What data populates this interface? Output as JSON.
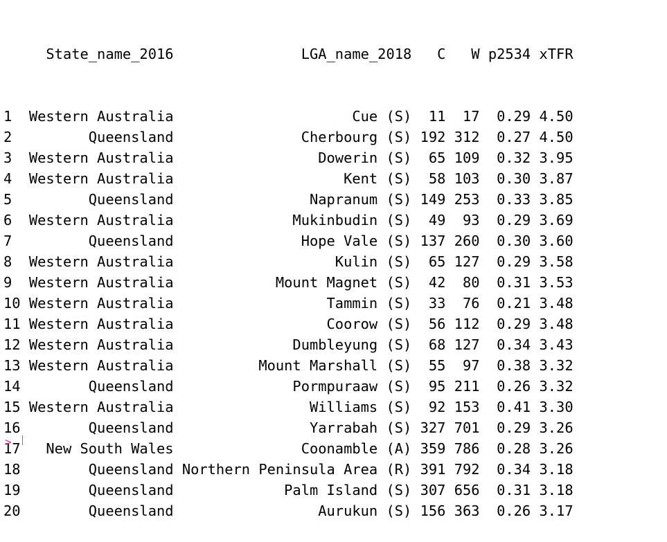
{
  "console": {
    "columns": [
      "State_name_2016",
      "LGA_name_2018",
      "C",
      "W",
      "p2534",
      "xTFR"
    ],
    "rows": [
      {
        "idx": "1",
        "state": "Western Australia",
        "lga": "Cue (S)",
        "C": "11",
        "W": "17",
        "p2534": "0.29",
        "xTFR": "4.50"
      },
      {
        "idx": "2",
        "state": "Queensland",
        "lga": "Cherbourg (S)",
        "C": "192",
        "W": "312",
        "p2534": "0.27",
        "xTFR": "4.50"
      },
      {
        "idx": "3",
        "state": "Western Australia",
        "lga": "Dowerin (S)",
        "C": "65",
        "W": "109",
        "p2534": "0.32",
        "xTFR": "3.95"
      },
      {
        "idx": "4",
        "state": "Western Australia",
        "lga": "Kent (S)",
        "C": "58",
        "W": "103",
        "p2534": "0.30",
        "xTFR": "3.87"
      },
      {
        "idx": "5",
        "state": "Queensland",
        "lga": "Napranum (S)",
        "C": "149",
        "W": "253",
        "p2534": "0.33",
        "xTFR": "3.85"
      },
      {
        "idx": "6",
        "state": "Western Australia",
        "lga": "Mukinbudin (S)",
        "C": "49",
        "W": "93",
        "p2534": "0.29",
        "xTFR": "3.69"
      },
      {
        "idx": "7",
        "state": "Queensland",
        "lga": "Hope Vale (S)",
        "C": "137",
        "W": "260",
        "p2534": "0.30",
        "xTFR": "3.60"
      },
      {
        "idx": "8",
        "state": "Western Australia",
        "lga": "Kulin (S)",
        "C": "65",
        "W": "127",
        "p2534": "0.29",
        "xTFR": "3.58"
      },
      {
        "idx": "9",
        "state": "Western Australia",
        "lga": "Mount Magnet (S)",
        "C": "42",
        "W": "80",
        "p2534": "0.31",
        "xTFR": "3.53"
      },
      {
        "idx": "10",
        "state": "Western Australia",
        "lga": "Tammin (S)",
        "C": "33",
        "W": "76",
        "p2534": "0.21",
        "xTFR": "3.48"
      },
      {
        "idx": "11",
        "state": "Western Australia",
        "lga": "Coorow (S)",
        "C": "56",
        "W": "112",
        "p2534": "0.29",
        "xTFR": "3.48"
      },
      {
        "idx": "12",
        "state": "Western Australia",
        "lga": "Dumbleyung (S)",
        "C": "68",
        "W": "127",
        "p2534": "0.34",
        "xTFR": "3.43"
      },
      {
        "idx": "13",
        "state": "Western Australia",
        "lga": "Mount Marshall (S)",
        "C": "55",
        "W": "97",
        "p2534": "0.38",
        "xTFR": "3.32"
      },
      {
        "idx": "14",
        "state": "Queensland",
        "lga": "Pormpuraaw (S)",
        "C": "95",
        "W": "211",
        "p2534": "0.26",
        "xTFR": "3.32"
      },
      {
        "idx": "15",
        "state": "Western Australia",
        "lga": "Williams (S)",
        "C": "92",
        "W": "153",
        "p2534": "0.41",
        "xTFR": "3.30"
      },
      {
        "idx": "16",
        "state": "Queensland",
        "lga": "Yarrabah (S)",
        "C": "327",
        "W": "701",
        "p2534": "0.29",
        "xTFR": "3.26"
      },
      {
        "idx": "17",
        "state": "New South Wales",
        "lga": "Coonamble (A)",
        "C": "359",
        "W": "786",
        "p2534": "0.28",
        "xTFR": "3.26"
      },
      {
        "idx": "18",
        "state": "Queensland",
        "lga": "Northern Peninsula Area (R)",
        "C": "391",
        "W": "792",
        "p2534": "0.34",
        "xTFR": "3.18"
      },
      {
        "idx": "19",
        "state": "Queensland",
        "lga": "Palm Island (S)",
        "C": "307",
        "W": "656",
        "p2534": "0.31",
        "xTFR": "3.18"
      },
      {
        "idx": "20",
        "state": "Queensland",
        "lga": "Aurukun (S)",
        "C": "156",
        "W": "363",
        "p2534": "0.26",
        "xTFR": "3.17"
      }
    ],
    "prompt_symbol": ">",
    "prompt_color": "#d6338a"
  }
}
